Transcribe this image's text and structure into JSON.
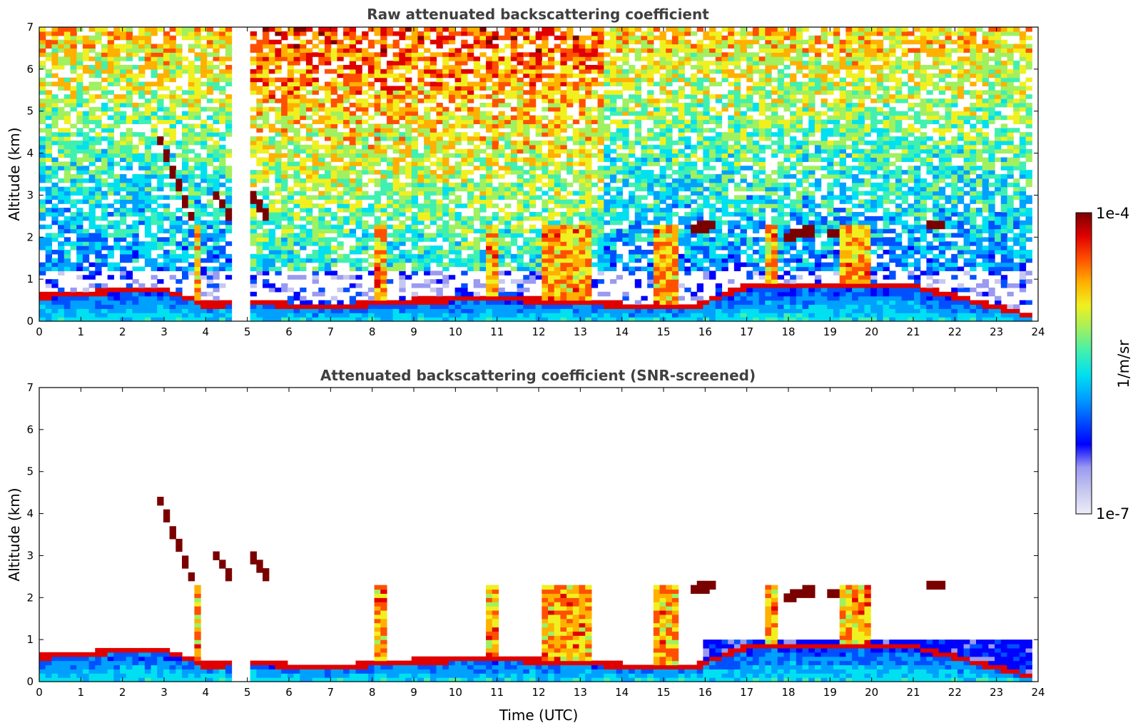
{
  "chart_data": [
    {
      "type": "heatmap",
      "title": "Raw attenuated backscattering coefficient",
      "xlabel": "",
      "ylabel": "Altitude (km)",
      "xlim": [
        0,
        24
      ],
      "ylim": [
        0,
        7
      ],
      "xticks": [
        "0",
        "1",
        "2",
        "3",
        "4",
        "5",
        "6",
        "7",
        "8",
        "9",
        "10",
        "11",
        "12",
        "13",
        "14",
        "15",
        "16",
        "17",
        "18",
        "19",
        "20",
        "21",
        "22",
        "23",
        "24"
      ],
      "yticks": [
        "0",
        "1",
        "2",
        "3",
        "4",
        "5",
        "6",
        "7"
      ],
      "data_gap": [
        4.6,
        5.05
      ],
      "features": {
        "boundary_layer_top_km": [
          [
            0,
            0.65
          ],
          [
            2,
            0.8
          ],
          [
            3,
            0.8
          ],
          [
            4,
            0.45
          ],
          [
            5,
            0.5
          ],
          [
            7,
            0.4
          ],
          [
            9,
            0.55
          ],
          [
            11,
            0.6
          ],
          [
            13,
            0.5
          ],
          [
            14,
            0.45
          ],
          [
            15.7,
            0.4
          ],
          [
            17,
            0.9
          ],
          [
            20,
            0.9
          ],
          [
            21,
            0.9
          ],
          [
            23.8,
            0.2
          ]
        ],
        "elevated_layers": [
          {
            "t0": 2.9,
            "t1": 3.7,
            "z0": 4.3,
            "z1": 2.4
          },
          {
            "t0": 4.1,
            "t1": 4.6,
            "z0": 3.2,
            "z1": 2.5
          },
          {
            "t0": 5.0,
            "t1": 5.5,
            "z0": 3.1,
            "z1": 2.5
          },
          {
            "t0": 15.7,
            "t1": 16.2,
            "z0": 2.2,
            "z1": 2.3
          },
          {
            "t0": 17.9,
            "t1": 18.7,
            "z0": 2.0,
            "z1": 2.2
          },
          {
            "t0": 18.9,
            "t1": 20.0,
            "z0": 2.1,
            "z1": 2.1
          },
          {
            "t0": 21.3,
            "t1": 21.8,
            "z0": 2.3,
            "z1": 2.3
          }
        ],
        "precip_columns": [
          [
            3.7,
            3.85
          ],
          [
            8.0,
            8.3
          ],
          [
            10.8,
            11.0
          ],
          [
            12.1,
            13.2
          ],
          [
            14.8,
            15.4
          ],
          [
            17.5,
            17.8
          ],
          [
            19.3,
            19.9
          ]
        ]
      }
    },
    {
      "type": "heatmap",
      "title": "Attenuated backscattering coefficient (SNR-screened)",
      "xlabel": "Time (UTC)",
      "ylabel": "Altitude (km)",
      "xlim": [
        0,
        24
      ],
      "ylim": [
        0,
        7
      ],
      "xticks": [
        "0",
        "1",
        "2",
        "3",
        "4",
        "5",
        "6",
        "7",
        "8",
        "9",
        "10",
        "11",
        "12",
        "13",
        "14",
        "15",
        "16",
        "17",
        "18",
        "19",
        "20",
        "21",
        "22",
        "23",
        "24"
      ],
      "yticks": [
        "0",
        "1",
        "2",
        "3",
        "4",
        "5",
        "6",
        "7"
      ]
    }
  ],
  "colorbar": {
    "label": "1/m/sr",
    "max_label": "1e-4",
    "min_label": "1e-7",
    "colors": [
      "#ececf8",
      "#c7c7f0",
      "#9a9af0",
      "#0000ff",
      "#0050ff",
      "#00a0ff",
      "#00e0f0",
      "#40f0b0",
      "#a0f060",
      "#f0f020",
      "#ffb000",
      "#ff5000",
      "#e00000",
      "#7a0000"
    ]
  }
}
